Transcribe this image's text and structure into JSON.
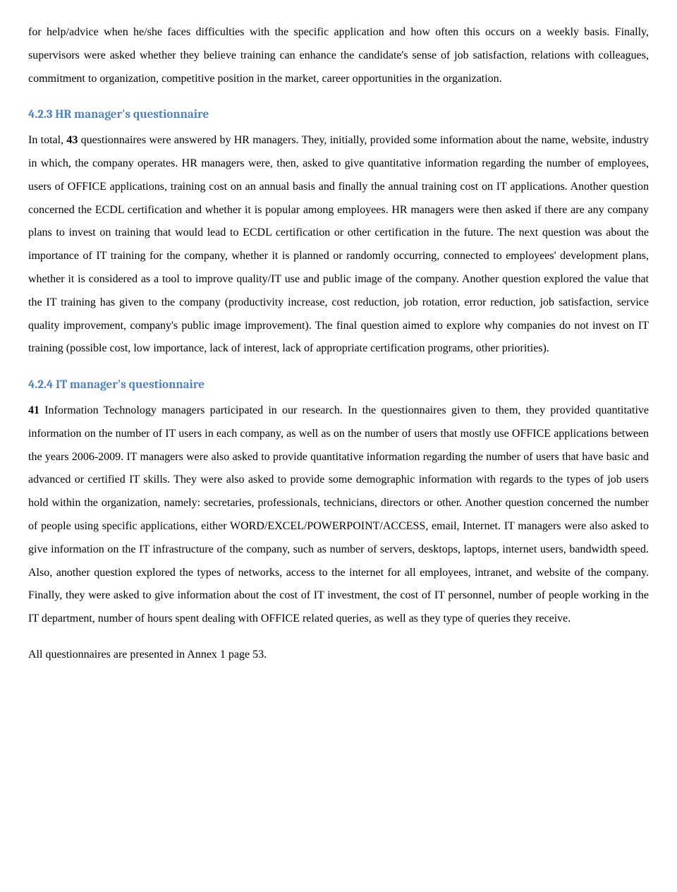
{
  "intro_paragraph": "for help/advice when he/she faces difficulties with the specific application and how often this occurs on a weekly basis. Finally, supervisors were asked whether they believe training can enhance the candidate's sense of job satisfaction, relations with colleagues, commitment to organization, competitive position in the market, career opportunities in the organization.",
  "section1": {
    "heading": "4.2.3 HR manager's questionnaire",
    "body_prefix": "In total, ",
    "bold": "43",
    "body_suffix": " questionnaires were answered by HR managers. They, initially, provided some information about the name, website, industry in which, the company operates. HR managers were, then, asked to give quantitative information regarding the number of employees, users of OFFICE applications, training cost on an annual basis and finally the annual training cost on IT applications. Another question concerned the ECDL certification and whether it is popular among employees. HR managers were then asked if there are any company plans to invest on training that would lead to ECDL certification or other certification in the future. The next question was about the importance of IT training for the company, whether it is planned or randomly occurring, connected to employees' development plans, whether it is considered as a tool to improve quality/IT use and public image of the company. Another question explored the value that the IT training has given to the company (productivity increase, cost reduction, job rotation, error reduction, job satisfaction, service quality improvement, company's public image improvement). The final question aimed to explore why companies do not invest on IT training (possible cost, low importance, lack of interest, lack of appropriate certification programs, other priorities)."
  },
  "section2": {
    "heading": "4.2.4 IT manager's questionnaire",
    "bold": "41",
    "body_suffix": " Information Technology managers participated in our research. In the questionnaires given to them, they provided quantitative information on the number of IT users in each company, as well as on the number of users that mostly use OFFICE applications between the years 2006-2009. IT managers were also asked to provide quantitative information regarding the number of users that have basic and advanced or certified IT skills. They were also asked to provide some demographic information with regards to the types of job users hold within the organization, namely: secretaries, professionals, technicians, directors or other. Another question concerned the number of people using specific applications, either WORD/EXCEL/POWERPOINT/ACCESS, email, Internet. IT managers were also asked to give information on the IT infrastructure of the company, such as number of servers, desktops, laptops, internet users, bandwidth speed. Also, another question explored the types of networks, access to the internet for all employees, intranet, and website of the company. Finally, they were asked to give information about the cost of IT investment, the cost of IT personnel, number of people working in the IT department, number of hours spent dealing with OFFICE related queries, as well as they type of queries they receive."
  },
  "closing": "All questionnaires are presented in Annex 1 page 53."
}
